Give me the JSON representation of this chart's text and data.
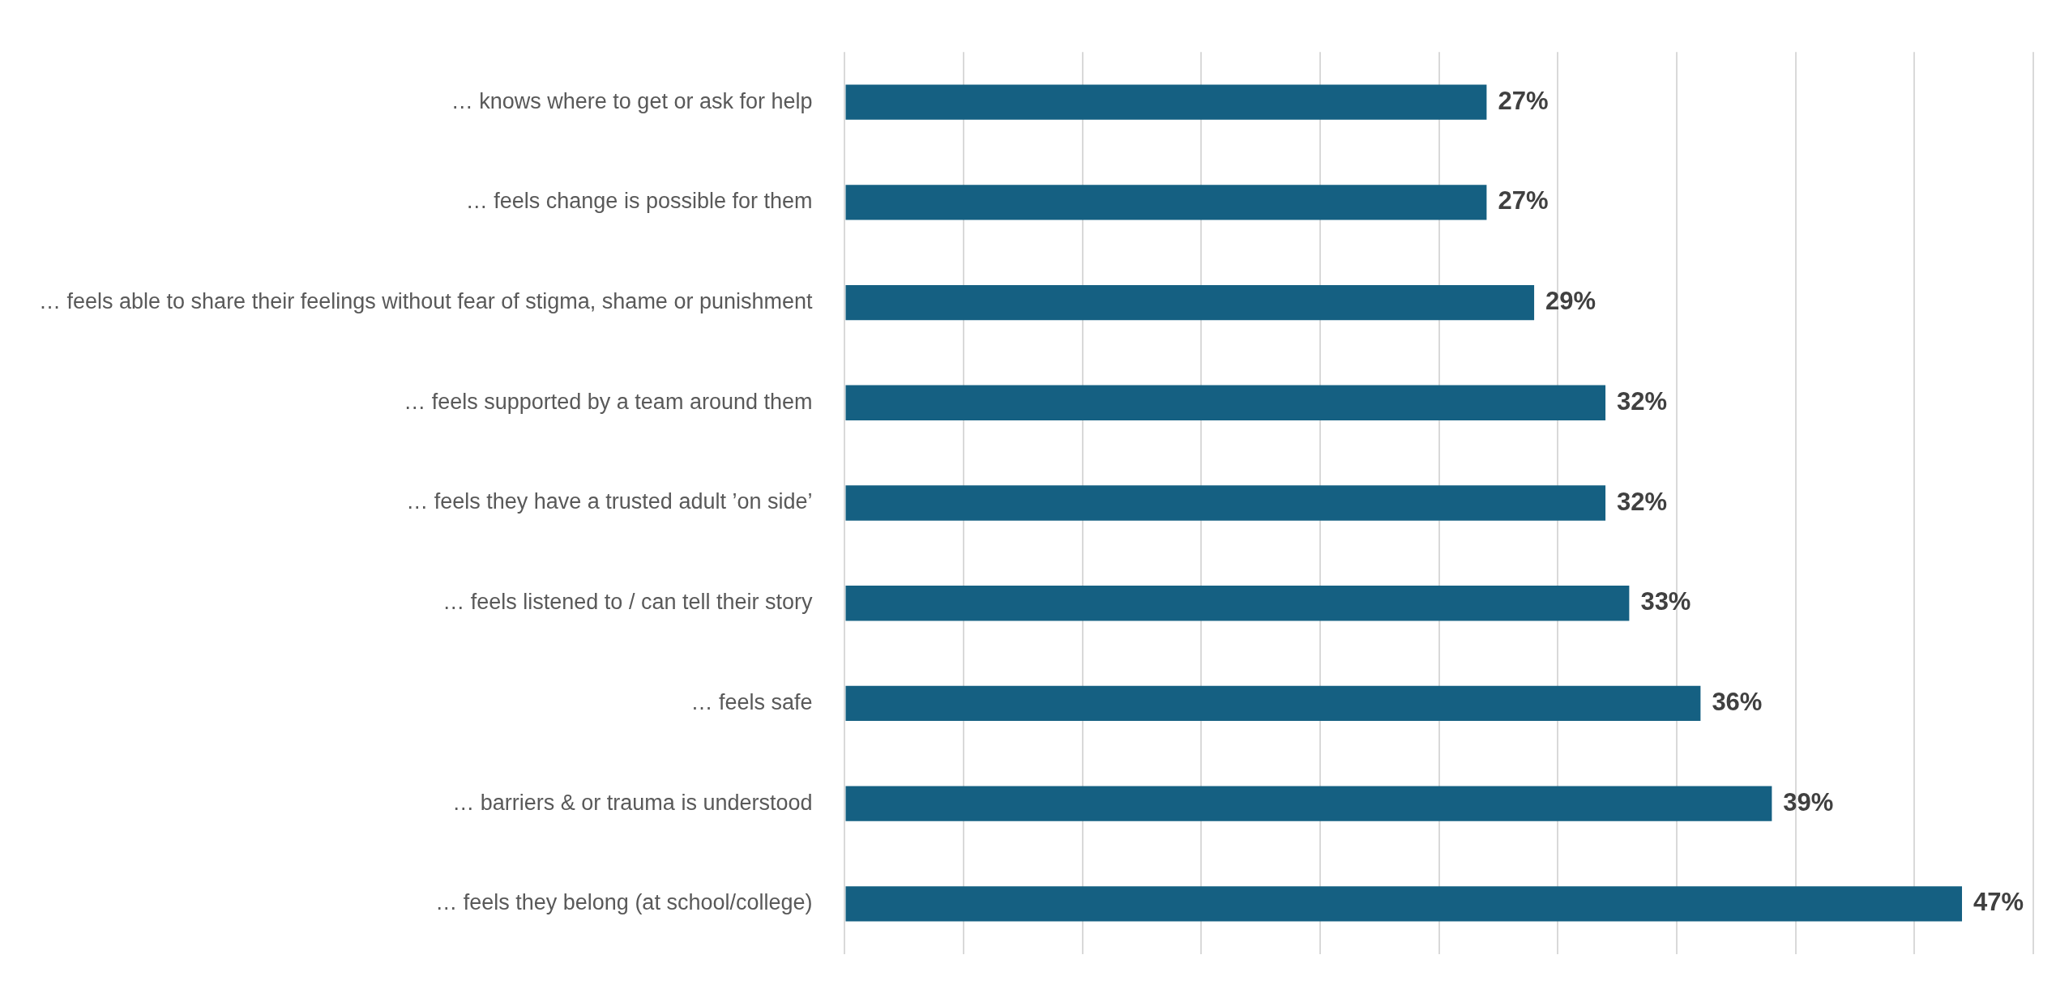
{
  "chart_data": {
    "type": "bar",
    "orientation": "horizontal",
    "categories": [
      "… knows where to get or ask for help",
      "… feels change is possible for them",
      "… feels able to share their feelings without fear of stigma, shame or punishment",
      "… feels supported by a team around them",
      "… feels they have a trusted adult ’on side’",
      "… feels listened to / can tell their story",
      "… feels safe",
      "… barriers & or trauma is understood",
      "… feels they belong (at school/college)"
    ],
    "values": [
      27,
      27,
      29,
      32,
      32,
      33,
      36,
      39,
      47
    ],
    "value_labels": [
      "27%",
      "27%",
      "29%",
      "32%",
      "32%",
      "33%",
      "36%",
      "39%",
      "47%"
    ],
    "color": "#156082",
    "xlim": [
      0,
      50
    ],
    "xticks": [
      {
        "value": 0,
        "label": null
      },
      {
        "value": 5,
        "label": null
      },
      {
        "value": 10,
        "label": null
      },
      {
        "value": 15,
        "label": null
      },
      {
        "value": 20,
        "label": null
      },
      {
        "value": 25,
        "label": null
      },
      {
        "value": 30,
        "label": null
      },
      {
        "value": 35,
        "label": null
      },
      {
        "value": 40,
        "label": null
      },
      {
        "value": 45,
        "label": null
      },
      {
        "value": 50,
        "label": null
      }
    ],
    "tick_labels": "y",
    "grid": "x",
    "legend": false
  }
}
